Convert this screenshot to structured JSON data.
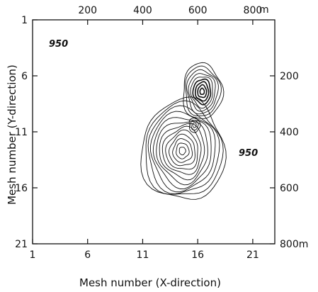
{
  "chart_data": {
    "type": "contour",
    "xlabel": "Mesh number (X-direction)",
    "ylabel": "Mesh number (Y-direction)",
    "xlim": [
      1,
      23
    ],
    "ylim": [
      21,
      1
    ],
    "x_ticks": [
      "1",
      "6",
      "11",
      "16",
      "21"
    ],
    "y_ticks": [
      "1",
      "6",
      "11",
      "16",
      "21"
    ],
    "top_axis": {
      "ticks": [
        "200",
        "400",
        "600",
        "800"
      ],
      "unit": "m",
      "positions": [
        200,
        400,
        600,
        800
      ]
    },
    "right_axis": {
      "ticks": [
        "200",
        "400",
        "600",
        "800m"
      ],
      "positions": [
        200,
        400,
        600,
        800
      ]
    },
    "annotations": [
      {
        "text": "950",
        "x": 3.5,
        "y": 3.0
      },
      {
        "text": "950",
        "x": 19.6,
        "y": 12.2
      }
    ],
    "peaks": [
      {
        "x": 14.6,
        "y": 12.7,
        "rings": 13,
        "width": 7.6,
        "height": 9.0
      },
      {
        "x": 16.4,
        "y": 7.4,
        "rings": 9,
        "width": 3.6,
        "height": 5.0
      },
      {
        "x": 15.7,
        "y": 10.4,
        "rings": 3,
        "width": 1.0,
        "height": 1.3
      }
    ],
    "grid": false
  }
}
